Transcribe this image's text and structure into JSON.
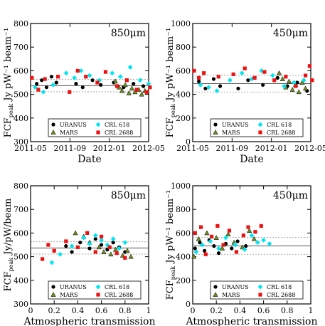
{
  "chart_data": [
    {
      "type": "scatter",
      "title": "850μm",
      "xlabel": "Date",
      "ylabel": "FCF_peak Jy pW⁻¹ beam⁻¹",
      "ylim": [
        300,
        800
      ],
      "yticks": [
        300,
        400,
        500,
        600,
        700,
        800
      ],
      "xlim": [
        "2011-05",
        "2012-05"
      ],
      "xticklabels": [
        "2011-05",
        "2011-09",
        "2012-01",
        "2012-05"
      ],
      "reference_lines": [
        537,
        563,
        511
      ],
      "legend": [
        "URANUS",
        "MARS",
        "CRL 618",
        "CRL 2688"
      ],
      "legend_position": "bottom",
      "series": [
        {
          "name": "URANUS",
          "color": "#000000",
          "marker": "circle",
          "points": [
            [
              "2011-05-20",
              545
            ],
            [
              "2011-06-05",
              560
            ],
            [
              "2011-06-20",
              530
            ],
            [
              "2011-07-05",
              575
            ],
            [
              "2011-07-20",
              550
            ],
            [
              "2011-09-20",
              545
            ],
            [
              "2011-10-10",
              530
            ],
            [
              "2011-11-10",
              560
            ],
            [
              "2011-12-05",
              540
            ],
            [
              "2012-01-15",
              550
            ],
            [
              "2012-02-15",
              530
            ],
            [
              "2012-03-15",
              545
            ],
            [
              "2012-04-15",
              535
            ]
          ]
        },
        {
          "name": "MARS",
          "color": "#6b8e23",
          "marker": "triangle",
          "points": [
            [
              "2012-01-20",
              555
            ],
            [
              "2012-02-01",
              530
            ],
            [
              "2012-02-10",
              515
            ],
            [
              "2012-02-20",
              540
            ],
            [
              "2012-03-01",
              505
            ],
            [
              "2012-03-10",
              525
            ],
            [
              "2012-03-20",
              510
            ],
            [
              "2012-04-01",
              520
            ],
            [
              "2012-04-10",
              500
            ],
            [
              "2012-04-20",
              515
            ]
          ]
        },
        {
          "name": "CRL 618",
          "color": "#00e5ee",
          "marker": "diamond",
          "points": [
            [
              "2011-05-15",
              530
            ],
            [
              "2011-06-10",
              510
            ],
            [
              "2011-07-10",
              540
            ],
            [
              "2011-08-20",
              590
            ],
            [
              "2011-09-15",
              570
            ],
            [
              "2011-10-05",
              600
            ],
            [
              "2011-11-01",
              580
            ],
            [
              "2011-12-01",
              560
            ],
            [
              "2012-01-10",
              590
            ],
            [
              "2012-02-05",
              575
            ],
            [
              "2012-03-05",
              615
            ],
            [
              "2012-04-05",
              560
            ],
            [
              "2012-05-01",
              545
            ]
          ]
        },
        {
          "name": "CRL 2688",
          "color": "#ee1111",
          "marker": "square",
          "points": [
            [
              "2011-05-05",
              570
            ],
            [
              "2011-05-25",
              520
            ],
            [
              "2011-06-15",
              565
            ],
            [
              "2011-07-25",
              575
            ],
            [
              "2011-08-30",
              510
            ],
            [
              "2011-09-25",
              600
            ],
            [
              "2011-10-20",
              575
            ],
            [
              "2011-11-25",
              550
            ],
            [
              "2011-12-20",
              595
            ],
            [
              "2012-01-25",
              535
            ],
            [
              "2012-02-25",
              560
            ],
            [
              "2012-03-25",
              520
            ],
            [
              "2012-04-25",
              510
            ],
            [
              "2012-05-05",
              530
            ]
          ]
        }
      ]
    },
    {
      "type": "scatter",
      "title": "450μm",
      "xlabel": "Date",
      "ylabel": "FCF_peak Jy pW⁻¹ beam⁻¹",
      "ylim": [
        0,
        1000
      ],
      "yticks": [
        0,
        200,
        400,
        600,
        800,
        1000
      ],
      "xlim": [
        "2011-05",
        "2012-05"
      ],
      "xticklabels": [
        "2011-05",
        "2011-09",
        "2012-01",
        "2012-05"
      ],
      "reference_lines": [
        491,
        562,
        420
      ],
      "legend": [
        "URANUS",
        "MARS",
        "CRL 618",
        "CRL 2688"
      ],
      "legend_position": "bottom",
      "series": [
        {
          "name": "URANUS",
          "color": "#000000",
          "marker": "circle",
          "points": [
            [
              "2011-05-20",
              510
            ],
            [
              "2011-06-10",
              450
            ],
            [
              "2011-07-05",
              530
            ],
            [
              "2011-07-25",
              470
            ],
            [
              "2011-09-20",
              450
            ],
            [
              "2011-10-20",
              520
            ],
            [
              "2011-12-05",
              480
            ],
            [
              "2012-01-20",
              540
            ],
            [
              "2012-02-20",
              470
            ],
            [
              "2012-03-20",
              500
            ],
            [
              "2012-04-20",
              430
            ]
          ]
        },
        {
          "name": "MARS",
          "color": "#6b8e23",
          "marker": "triangle",
          "points": [
            [
              "2012-01-25",
              580
            ],
            [
              "2012-02-05",
              530
            ],
            [
              "2012-02-15",
              460
            ],
            [
              "2012-02-25",
              510
            ],
            [
              "2012-03-05",
              440
            ],
            [
              "2012-03-15",
              480
            ],
            [
              "2012-03-25",
              420
            ],
            [
              "2012-04-05",
              500
            ],
            [
              "2012-04-15",
              450
            ]
          ]
        },
        {
          "name": "CRL 618",
          "color": "#00e5ee",
          "marker": "diamond",
          "points": [
            [
              "2011-05-25",
              480
            ],
            [
              "2011-06-20",
              460
            ],
            [
              "2011-07-15",
              430
            ],
            [
              "2011-08-25",
              520
            ],
            [
              "2011-10-01",
              580
            ],
            [
              "2011-11-01",
              530
            ],
            [
              "2011-12-01",
              600
            ],
            [
              "2012-01-05",
              560
            ],
            [
              "2012-02-10",
              470
            ],
            [
              "2012-03-10",
              500
            ],
            [
              "2012-04-10",
              520
            ]
          ]
        },
        {
          "name": "CRL 2688",
          "color": "#ee1111",
          "marker": "square",
          "points": [
            [
              "2011-05-05",
              600
            ],
            [
              "2011-05-20",
              540
            ],
            [
              "2011-06-05",
              580
            ],
            [
              "2011-07-20",
              550
            ],
            [
              "2011-09-05",
              570
            ],
            [
              "2011-10-10",
              620
            ],
            [
              "2011-11-10",
              540
            ],
            [
              "2011-12-10",
              590
            ],
            [
              "2012-01-10",
              520
            ],
            [
              "2012-02-15",
              550
            ],
            [
              "2012-03-15",
              470
            ],
            [
              "2012-04-15",
              560
            ],
            [
              "2012-04-28",
              640
            ],
            [
              "2012-05-05",
              520
            ]
          ]
        }
      ]
    },
    {
      "type": "scatter",
      "title": "850μm",
      "xlabel": "Atmospheric transmission",
      "ylabel": "FCF_peak Jy/pW/beam",
      "ylim": [
        300,
        800
      ],
      "yticks": [
        300,
        400,
        500,
        600,
        700,
        800
      ],
      "xlim": [
        0,
        1
      ],
      "xticks": [
        0,
        0.2,
        0.4,
        0.6,
        0.8,
        1
      ],
      "reference_lines": [
        537,
        563,
        511
      ],
      "legend": [
        "URANUS",
        "MARS",
        "CRL 618",
        "CRL 2688"
      ],
      "legend_position": "bottom",
      "series": [
        {
          "name": "URANUS",
          "color": "#000000",
          "marker": "circle",
          "points": [
            [
              0.3,
              545
            ],
            [
              0.35,
              520
            ],
            [
              0.42,
              560
            ],
            [
              0.5,
              535
            ],
            [
              0.55,
              575
            ],
            [
              0.6,
              550
            ],
            [
              0.65,
              530
            ],
            [
              0.7,
              560
            ],
            [
              0.75,
              540
            ],
            [
              0.8,
              520
            ]
          ]
        },
        {
          "name": "MARS",
          "color": "#6b8e23",
          "marker": "triangle",
          "points": [
            [
              0.38,
              600
            ],
            [
              0.45,
              585
            ],
            [
              0.5,
              560
            ],
            [
              0.58,
              540
            ],
            [
              0.62,
              520
            ],
            [
              0.68,
              510
            ],
            [
              0.72,
              530
            ],
            [
              0.78,
              505
            ],
            [
              0.82,
              525
            ],
            [
              0.85,
              500
            ]
          ]
        },
        {
          "name": "CRL 618",
          "color": "#00e5ee",
          "marker": "diamond",
          "points": [
            [
              0.18,
              475
            ],
            [
              0.25,
              510
            ],
            [
              0.35,
              545
            ],
            [
              0.45,
              580
            ],
            [
              0.5,
              555
            ],
            [
              0.55,
              590
            ],
            [
              0.6,
              570
            ],
            [
              0.65,
              550
            ],
            [
              0.7,
              575
            ],
            [
              0.75,
              535
            ],
            [
              0.8,
              560
            ]
          ]
        },
        {
          "name": "CRL 2688",
          "color": "#ee1111",
          "marker": "square",
          "points": [
            [
              0.1,
              490
            ],
            [
              0.15,
              550
            ],
            [
              0.2,
              525
            ],
            [
              0.3,
              565
            ],
            [
              0.4,
              540
            ],
            [
              0.48,
              600
            ],
            [
              0.55,
              520
            ],
            [
              0.6,
              585
            ],
            [
              0.67,
              540
            ],
            [
              0.73,
              515
            ],
            [
              0.8,
              495
            ]
          ]
        }
      ]
    },
    {
      "type": "scatter",
      "title": "450μm",
      "xlabel": "Atmospheric transmission",
      "ylabel": "FCF_peak Jy pW⁻¹ beam⁻¹",
      "ylim": [
        0,
        1000
      ],
      "yticks": [
        0,
        200,
        400,
        600,
        800,
        1000
      ],
      "xlim": [
        0,
        1
      ],
      "xticks": [
        0,
        0.2,
        0.4,
        0.6,
        0.8,
        1
      ],
      "reference_lines": [
        491,
        562,
        420
      ],
      "legend": [
        "URANUS",
        "MARS",
        "CRL 618",
        "CRL 2688"
      ],
      "legend_position": "bottom",
      "series": [
        {
          "name": "URANUS",
          "color": "#000000",
          "marker": "circle",
          "points": [
            [
              0.02,
              470
            ],
            [
              0.06,
              520
            ],
            [
              0.1,
              450
            ],
            [
              0.14,
              540
            ],
            [
              0.18,
              490
            ],
            [
              0.22,
              430
            ],
            [
              0.28,
              510
            ],
            [
              0.33,
              470
            ],
            [
              0.38,
              530
            ],
            [
              0.45,
              490
            ]
          ]
        },
        {
          "name": "MARS",
          "color": "#6b8e23",
          "marker": "triangle",
          "points": [
            [
              0.01,
              400
            ],
            [
              0.05,
              550
            ],
            [
              0.12,
              600
            ],
            [
              0.2,
              560
            ],
            [
              0.25,
              470
            ],
            [
              0.3,
              590
            ],
            [
              0.35,
              520
            ],
            [
              0.42,
              480
            ],
            [
              0.48,
              620
            ],
            [
              0.52,
              550
            ]
          ]
        },
        {
          "name": "CRL 618",
          "color": "#00e5ee",
          "marker": "diamond",
          "points": [
            [
              0.03,
              440
            ],
            [
              0.08,
              500
            ],
            [
              0.15,
              530
            ],
            [
              0.22,
              470
            ],
            [
              0.28,
              560
            ],
            [
              0.36,
              500
            ],
            [
              0.44,
              460
            ],
            [
              0.5,
              580
            ],
            [
              0.55,
              520
            ],
            [
              0.6,
              540
            ],
            [
              0.65,
              510
            ]
          ]
        },
        {
          "name": "CRL 2688",
          "color": "#ee1111",
          "marker": "square",
          "points": [
            [
              0.02,
              600
            ],
            [
              0.07,
              650
            ],
            [
              0.11,
              420
            ],
            [
              0.16,
              570
            ],
            [
              0.21,
              660
            ],
            [
              0.26,
              500
            ],
            [
              0.31,
              620
            ],
            [
              0.37,
              440
            ],
            [
              0.43,
              580
            ],
            [
              0.47,
              650
            ],
            [
              0.53,
              610
            ],
            [
              0.58,
              660
            ]
          ]
        }
      ]
    }
  ]
}
